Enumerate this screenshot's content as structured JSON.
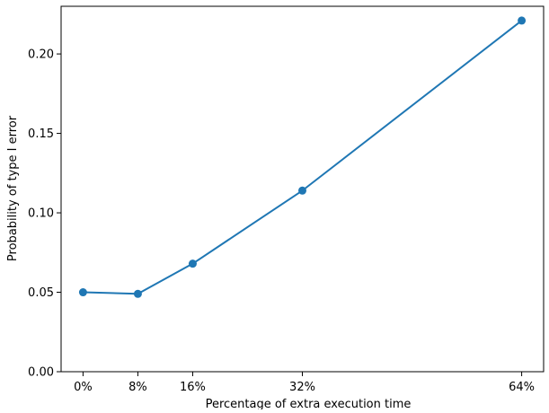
{
  "chart_data": {
    "type": "line",
    "title": "",
    "xlabel": "Percentage of extra execution time",
    "ylabel": "Probability of type I error",
    "x": [
      0,
      8,
      16,
      32,
      64
    ],
    "x_tick_labels": [
      "0%",
      "8%",
      "16%",
      "32%",
      "64%"
    ],
    "xlim": [
      -3.2,
      67.2
    ],
    "ylim": [
      0,
      0.23
    ],
    "y_ticks": [
      0.0,
      0.05,
      0.1,
      0.15,
      0.2
    ],
    "y_tick_labels": [
      "0.00",
      "0.05",
      "0.10",
      "0.15",
      "0.20"
    ],
    "grid": false,
    "series": [
      {
        "values": [
          0.05,
          0.049,
          0.068,
          0.114,
          0.221
        ],
        "color": "#1f77b4",
        "marker": "circle"
      }
    ]
  }
}
